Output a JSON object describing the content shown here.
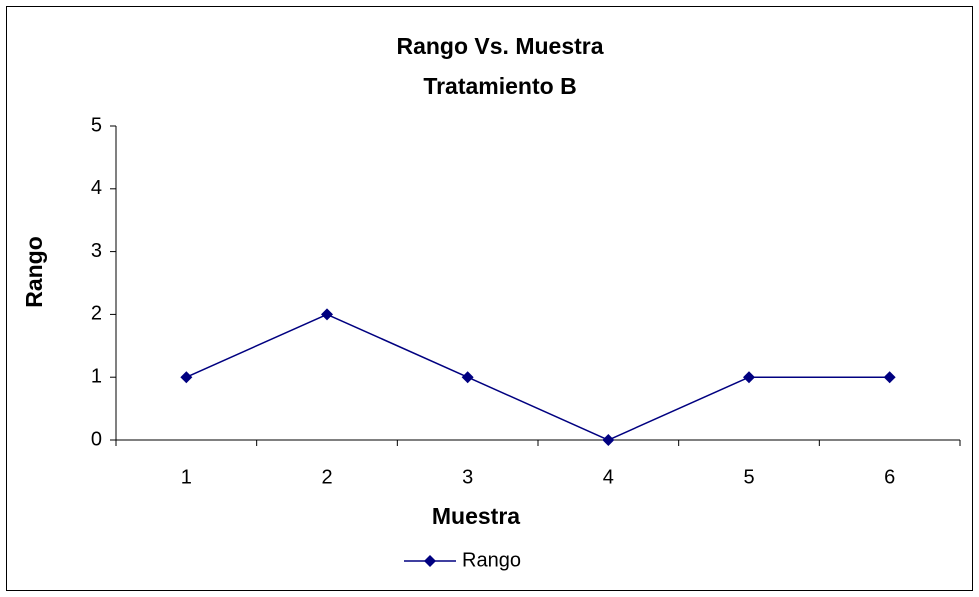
{
  "chart_data": {
    "type": "line",
    "title": "Rango Vs. Muestra",
    "subtitle": "Tratamiento B",
    "x_label": "Muestra",
    "y_label": "Rango",
    "categories": [
      "1",
      "2",
      "3",
      "4",
      "5",
      "6"
    ],
    "series": [
      {
        "name": "Rango",
        "color": "#000080",
        "values": [
          1,
          2,
          1,
          0,
          1,
          1
        ]
      }
    ],
    "ylim": [
      0,
      5
    ],
    "yticks": [
      0,
      1,
      2,
      3,
      4,
      5
    ],
    "grid": false,
    "legend": "bottom"
  }
}
